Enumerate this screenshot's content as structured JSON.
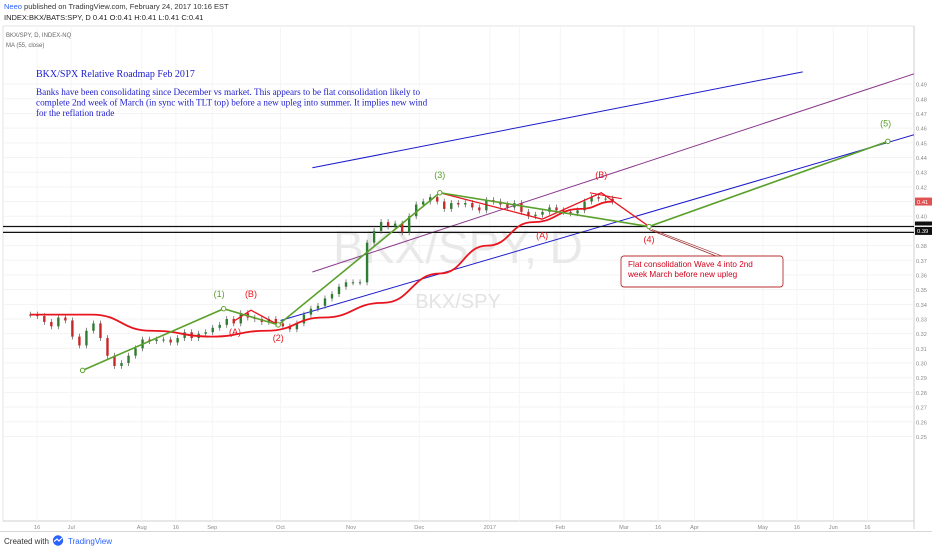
{
  "header": {
    "user": "Neeo",
    "published_text": "published on TradingView.com, February 24, 2017 10:16 EST",
    "symbol_line": "INDEX:BKX/BATS:SPY, D  0.41 O:0.41 H:0.41 L:0.41 C:0.41"
  },
  "legend": {
    "symbol": "BKX/SPY, D, INDEX-NQ",
    "study": "MA (55, close)"
  },
  "watermark": {
    "big": "BKX/SPY, D",
    "small": "BKX/SPY"
  },
  "annotation": {
    "title": "BKX/SPX Relative Roadmap Feb 2017",
    "body_lines": [
      "Banks have been consolidating since December vs market. This appears to be flat consolidation likely to",
      "complete 2nd week of March (in sync with TLT top) before a new upleg into summer. It implies new wind",
      "for the reflation trade"
    ],
    "callout_lines": [
      "Flat consolidation Wave 4 into 2nd",
      "week March before new upleg"
    ]
  },
  "footer": {
    "created_with": "Created with",
    "brand": "TradingView"
  },
  "colors": {
    "accent": "#2962ff",
    "channel": "#1a1acc",
    "inner_channel": "#8c3a8c",
    "wave": "#5aa02c",
    "ma": "#e8141e",
    "price_tag": "#e05252",
    "callout_text": "#d0021b"
  },
  "chart_data": {
    "type": "candlestick",
    "x_axis_labels": [
      "16",
      "Jul",
      "Aug",
      "16",
      "Sep",
      "Oct",
      "Nov",
      "Dec",
      "2017",
      "Jan",
      "Feb",
      "Mar",
      "16",
      "Apr",
      "May",
      "16",
      "Jun",
      "16"
    ],
    "y_axis_labels": [
      "0.49",
      "0.48",
      "0.47",
      "0.46",
      "0.45",
      "0.44",
      "0.43",
      "0.42",
      "0.41",
      "0.40",
      "0.39",
      "0.38",
      "0.37",
      "0.36",
      "0.35",
      "0.34",
      "0.33",
      "0.32",
      "0.31",
      "0.30",
      "0.29",
      "0.28",
      "0.27",
      "0.26",
      "0.25"
    ],
    "ylim": [
      0.245,
      0.49
    ],
    "price_tags": [
      "0.41",
      "0.39"
    ],
    "horizontal_levels": [
      0.393,
      0.389
    ],
    "price": {
      "start_date": "2016-06-13",
      "close": [
        0.333,
        0.332,
        0.328,
        0.325,
        0.331,
        0.329,
        0.318,
        0.312,
        0.322,
        0.327,
        0.317,
        0.305,
        0.298,
        0.3,
        0.305,
        0.31,
        0.316,
        0.315,
        0.316,
        0.316,
        0.314,
        0.317,
        0.321,
        0.317,
        0.32,
        0.321,
        0.324,
        0.326,
        0.33,
        0.327,
        0.334,
        0.331,
        0.33,
        0.328,
        0.33,
        0.327,
        0.325,
        0.323,
        0.327,
        0.333,
        0.337,
        0.339,
        0.344,
        0.347,
        0.352,
        0.355,
        0.355,
        0.355,
        0.382,
        0.39,
        0.396,
        0.393,
        0.395,
        0.389,
        0.4,
        0.408,
        0.41,
        0.413,
        0.41,
        0.405,
        0.409,
        0.408,
        0.409,
        0.406,
        0.404,
        0.411,
        0.41,
        0.408,
        0.406,
        0.409,
        0.403,
        0.4,
        0.401,
        0.403,
        0.406,
        0.404,
        0.403,
        0.402,
        0.404,
        0.41,
        0.413,
        0.412,
        0.412,
        0.41
      ]
    },
    "moving_average": {
      "name": "MA (55, close)",
      "points": [
        [
          "2016-06-13",
          0.333
        ],
        [
          "2016-07-10",
          0.333
        ],
        [
          "2016-08-05",
          0.322
        ],
        [
          "2016-09-01",
          0.318
        ],
        [
          "2016-09-25",
          0.322
        ],
        [
          "2016-10-20",
          0.331
        ],
        [
          "2016-11-15",
          0.341
        ],
        [
          "2016-12-10",
          0.361
        ],
        [
          "2016-12-31",
          0.38
        ],
        [
          "2017-01-20",
          0.396
        ],
        [
          "2017-02-10",
          0.405
        ],
        [
          "2017-02-24",
          0.41
        ]
      ]
    },
    "elliott_wave": [
      {
        "label": "",
        "date": "2016-07-06",
        "value": 0.295
      },
      {
        "label": "(1)",
        "date": "2016-09-06",
        "value": 0.337
      },
      {
        "label": "(2)",
        "date": "2016-09-30",
        "value": 0.326
      },
      {
        "label": "(3)",
        "date": "2016-12-10",
        "value": 0.416
      },
      {
        "label": "(4)",
        "date": "2017-03-12",
        "value": 0.393
      },
      {
        "label": "(5)",
        "date": "2017-06-25",
        "value": 0.451
      }
    ],
    "correction_abc": [
      [
        {
          "label": "(A)",
          "date": "2016-09-11",
          "value": 0.329
        },
        {
          "label": "(B)",
          "date": "2016-09-18",
          "value": 0.336
        },
        {
          "label": "(2)",
          "date": "2016-09-30",
          "value": 0.326
        }
      ],
      [
        {
          "label": "(3)",
          "date": "2016-12-10",
          "value": 0.416
        },
        {
          "label": "(A)",
          "date": "2017-01-24",
          "value": 0.398
        },
        {
          "label": "(B)",
          "date": "2017-02-19",
          "value": 0.416
        },
        {
          "label": "(4)",
          "date": "2017-03-12",
          "value": 0.393
        }
      ]
    ]
  }
}
